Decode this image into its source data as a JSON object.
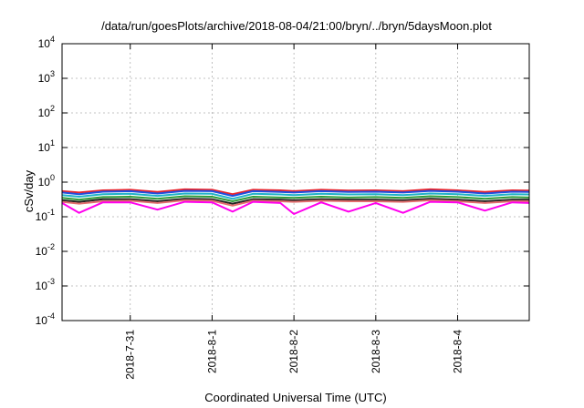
{
  "chart_data": {
    "type": "line",
    "title": "/data/run/goesPlots/archive/2018-08-04/21:00/bryn/../bryn/5daysMoon.plot",
    "xlabel": "Coordinated Universal Time (UTC)",
    "ylabel": "cSv/day",
    "yscale": "log",
    "ylim": [
      0.0001,
      10000
    ],
    "xlim": [
      "2018-07-30T04:00",
      "2018-08-04T21:00"
    ],
    "grid": true,
    "legend": "none",
    "y_ticks": [
      {
        "base": "10",
        "exp": "-4",
        "value": 0.0001
      },
      {
        "base": "10",
        "exp": "-3",
        "value": 0.001
      },
      {
        "base": "10",
        "exp": "-2",
        "value": 0.01
      },
      {
        "base": "10",
        "exp": "-1",
        "value": 0.1
      },
      {
        "base": "10",
        "exp": "0",
        "value": 1
      },
      {
        "base": "10",
        "exp": "1",
        "value": 10
      },
      {
        "base": "10",
        "exp": "2",
        "value": 100
      },
      {
        "base": "10",
        "exp": "3",
        "value": 1000
      },
      {
        "base": "10",
        "exp": "4",
        "value": 10000
      }
    ],
    "x_ticks": [
      {
        "label": "2018-7-31",
        "date": "2018-07-31T00:00"
      },
      {
        "label": "2018-8-1",
        "date": "2018-08-01T00:00"
      },
      {
        "label": "2018-8-2",
        "date": "2018-08-02T00:00"
      },
      {
        "label": "2018-8-3",
        "date": "2018-08-03T00:00"
      },
      {
        "label": "2018-8-4",
        "date": "2018-08-04T00:00"
      }
    ],
    "x": [
      "2018-07-30T04:00",
      "2018-07-30T09:00",
      "2018-07-30T16:00",
      "2018-07-31T00:00",
      "2018-07-31T08:00",
      "2018-07-31T16:00",
      "2018-08-01T00:00",
      "2018-08-01T06:00",
      "2018-08-01T12:00",
      "2018-08-01T20:00",
      "2018-08-02T00:00",
      "2018-08-02T08:00",
      "2018-08-02T16:00",
      "2018-08-03T00:00",
      "2018-08-03T08:00",
      "2018-08-03T16:00",
      "2018-08-04T00:00",
      "2018-08-04T08:00",
      "2018-08-04T16:00",
      "2018-08-04T21:00"
    ],
    "series": [
      {
        "color": "#e8232c",
        "values": [
          0.55,
          0.5,
          0.58,
          0.6,
          0.52,
          0.62,
          0.6,
          0.45,
          0.6,
          0.58,
          0.55,
          0.6,
          0.57,
          0.58,
          0.55,
          0.62,
          0.58,
          0.52,
          0.58,
          0.57
        ]
      },
      {
        "color": "#1f4fe0",
        "values": [
          0.5,
          0.45,
          0.53,
          0.55,
          0.47,
          0.56,
          0.55,
          0.4,
          0.55,
          0.52,
          0.5,
          0.55,
          0.52,
          0.53,
          0.5,
          0.56,
          0.53,
          0.47,
          0.53,
          0.52
        ]
      },
      {
        "color": "#20b2c8",
        "values": [
          0.42,
          0.38,
          0.45,
          0.46,
          0.4,
          0.47,
          0.46,
          0.33,
          0.46,
          0.44,
          0.42,
          0.46,
          0.44,
          0.45,
          0.42,
          0.47,
          0.45,
          0.4,
          0.45,
          0.44
        ]
      },
      {
        "color": "#2e9c3a",
        "values": [
          0.35,
          0.31,
          0.37,
          0.38,
          0.33,
          0.39,
          0.38,
          0.28,
          0.38,
          0.36,
          0.35,
          0.38,
          0.36,
          0.37,
          0.35,
          0.39,
          0.37,
          0.33,
          0.37,
          0.36
        ]
      },
      {
        "color": "#222222",
        "values": [
          0.3,
          0.27,
          0.32,
          0.32,
          0.28,
          0.33,
          0.32,
          0.24,
          0.32,
          0.31,
          0.3,
          0.32,
          0.31,
          0.31,
          0.3,
          0.33,
          0.31,
          0.28,
          0.31,
          0.31
        ]
      },
      {
        "color": "#e36d6d",
        "values": [
          0.27,
          0.24,
          0.28,
          0.29,
          0.25,
          0.3,
          0.29,
          0.21,
          0.29,
          0.28,
          0.27,
          0.29,
          0.28,
          0.28,
          0.27,
          0.3,
          0.28,
          0.25,
          0.28,
          0.28
        ]
      },
      {
        "color": "#ff00ee",
        "values": [
          0.25,
          0.13,
          0.26,
          0.26,
          0.16,
          0.27,
          0.26,
          0.14,
          0.27,
          0.25,
          0.12,
          0.26,
          0.14,
          0.25,
          0.13,
          0.27,
          0.26,
          0.15,
          0.26,
          0.25
        ]
      }
    ]
  }
}
